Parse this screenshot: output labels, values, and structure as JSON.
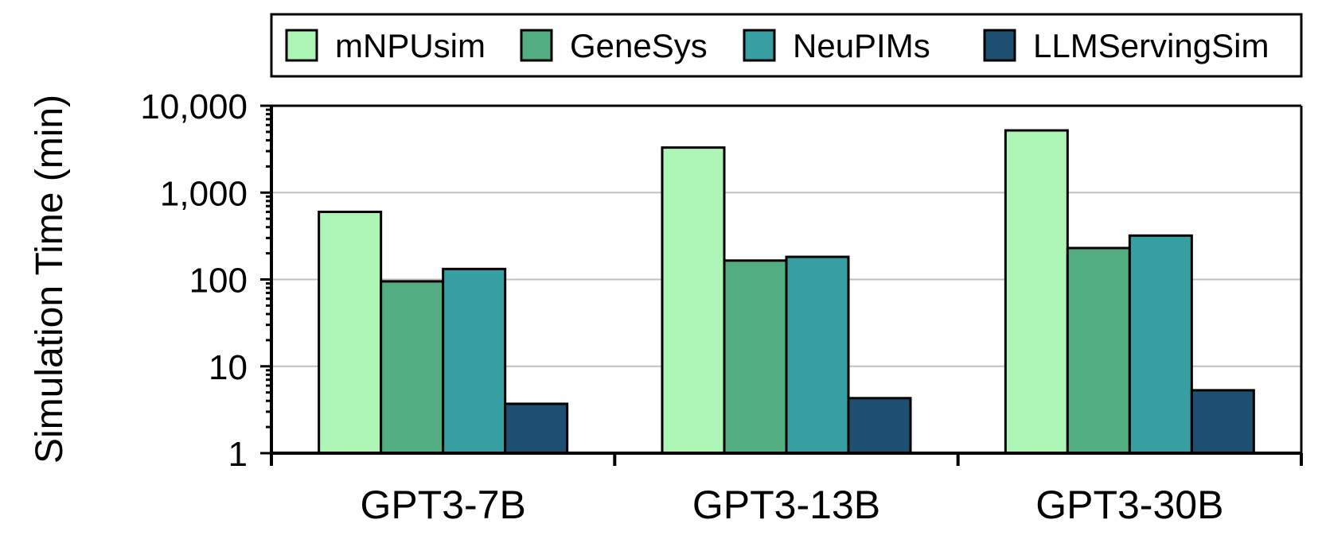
{
  "chart_data": {
    "type": "bar",
    "title": "",
    "xlabel": "",
    "ylabel": "Simulation Time (min)",
    "y_scale": "log",
    "ylim": [
      1,
      10000
    ],
    "y_ticks": [
      1,
      10,
      100,
      1000,
      10000
    ],
    "y_tick_labels": [
      "1",
      "10",
      "100",
      "1,000",
      "10,000"
    ],
    "categories": [
      "GPT3-7B",
      "GPT3-13B",
      "GPT3-30B"
    ],
    "series": [
      {
        "name": "mNPUsim",
        "color": "#adf5b5",
        "values": [
          600,
          3300,
          5200
        ]
      },
      {
        "name": "GeneSys",
        "color": "#52ad82",
        "values": [
          95,
          165,
          230
        ]
      },
      {
        "name": "NeuPIMs",
        "color": "#379ea1",
        "values": [
          132,
          182,
          320
        ]
      },
      {
        "name": "LLMServingSim",
        "color": "#1f4f70",
        "values": [
          3.7,
          4.3,
          5.3
        ]
      }
    ],
    "grid": true,
    "legend_position": "top"
  }
}
